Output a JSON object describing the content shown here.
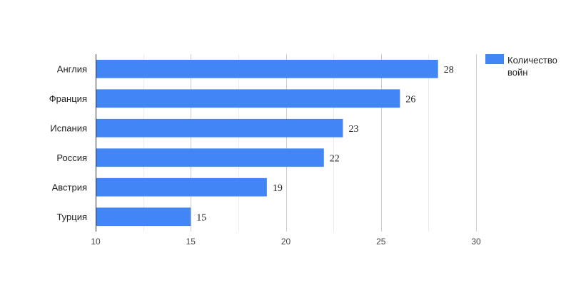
{
  "chart_data": {
    "type": "bar",
    "orientation": "horizontal",
    "categories": [
      "Англия",
      "Франция",
      "Испания",
      "Россия",
      "Австрия",
      "Турция"
    ],
    "series": [
      {
        "name": "Количество войн",
        "values": [
          28,
          26,
          23,
          22,
          19,
          15
        ],
        "color": "#4285f4"
      }
    ],
    "xlim": [
      10,
      30
    ],
    "x_ticks": [
      10,
      15,
      20,
      25,
      30
    ],
    "grid": true,
    "legend": "right",
    "data_labels": true,
    "title": "",
    "xlabel": "",
    "ylabel": ""
  }
}
